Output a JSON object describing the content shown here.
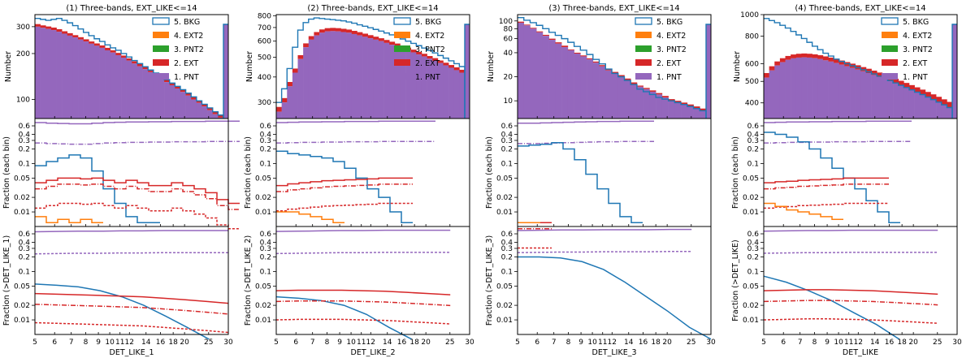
{
  "chart_data": {
    "type": "histogram-grid",
    "colors": {
      "bkg": "#1f77b4",
      "ext2": "#ff7f0e",
      "pnt2": "#2ca02c",
      "ext": "#d62728",
      "pnt": "#9467bd"
    },
    "legend": [
      "5. BKG",
      "4. EXT2",
      "3. PNT2",
      "2. EXT",
      "1. PNT"
    ],
    "row_ylabels": [
      "Number",
      "Fraction (each bin)"
    ],
    "frac_ticks": [
      0.01,
      0.02,
      0.05,
      0.1,
      0.2,
      0.3,
      0.4,
      0.6
    ],
    "frac_ticklabels": [
      "0.01",
      "0.02",
      "0.05",
      "0.1",
      "0.2",
      "0.3",
      "0.4",
      "0.6"
    ],
    "x_ticks": [
      5,
      6,
      7,
      8,
      9,
      10,
      11,
      12,
      14,
      16,
      18,
      20,
      25,
      30
    ],
    "x_ticklabels": [
      "5",
      "6",
      "7",
      "8",
      "9",
      "10",
      "11",
      "12",
      "14",
      "16",
      "18",
      "20",
      "25",
      "30"
    ],
    "panels": [
      {
        "title": "(1) Three-bands, EXT_LIKE<=14",
        "xlabel": "DET_LIKE_1",
        "cum_ylabel": "Fraction (>DET_LIKE_1)",
        "top_ylim": [
          75,
          360
        ],
        "top_ticks": [
          100,
          200,
          300
        ],
        "pnt_counts": [
          300,
          295,
          290,
          285,
          278,
          270,
          262,
          255,
          247,
          240,
          232,
          225,
          218,
          210,
          203,
          195,
          188,
          180,
          172,
          165,
          158,
          151,
          144,
          137,
          130,
          124,
          118,
          112,
          106,
          100,
          95,
          90,
          85,
          80,
          76
        ],
        "total_counts": [
          312,
          306,
          301,
          296,
          289,
          280,
          272,
          264,
          256,
          248,
          240,
          233,
          226,
          218,
          210,
          202,
          194,
          186,
          178,
          171,
          164,
          156,
          149,
          142,
          135,
          128,
          122,
          116,
          110,
          104,
          98,
          93,
          88,
          83,
          79
        ],
        "bkg_counts": [
          340,
          335,
          330,
          335,
          340,
          330,
          318,
          305,
          290,
          275,
          262,
          250,
          240,
          228,
          218,
          210,
          200,
          190,
          180,
          172,
          164,
          156,
          149,
          142,
          135,
          128,
          122,
          116,
          110,
          104,
          98,
          93,
          88,
          83,
          79
        ],
        "frac_pnt": [
          0.7,
          0.68,
          0.67,
          0.66,
          0.66,
          0.68,
          0.7,
          0.71,
          0.72,
          0.72,
          0.73,
          0.73,
          0.74,
          0.74,
          0.74,
          0.75,
          0.75,
          0.75
        ],
        "frac_bkg": [
          0.09,
          0.11,
          0.13,
          0.15,
          0.13,
          0.07,
          0.03,
          0.015,
          0.008,
          0.006,
          0.006
        ],
        "frac_ext": [
          0.04,
          0.045,
          0.05,
          0.05,
          0.048,
          0.05,
          0.045,
          0.04,
          0.045,
          0.04,
          0.035,
          0.035,
          0.04,
          0.035,
          0.03,
          0.025,
          0.018,
          0.015
        ],
        "frac_ext2": [
          0.008,
          0.006,
          0.007,
          0.006,
          0.007,
          0.006
        ],
        "cum_bkg": [
          0.055,
          0.052,
          0.048,
          0.04,
          0.03,
          0.02,
          0.012,
          0.007,
          0.004
        ],
        "cum_ext": [
          0.035,
          0.034,
          0.033,
          0.032,
          0.031,
          0.03,
          0.028,
          0.026,
          0.024,
          0.022
        ],
        "cum_pnt": [
          0.66,
          0.67,
          0.68,
          0.68,
          0.69,
          0.69,
          0.7,
          0.7,
          0.7,
          0.7
        ]
      },
      {
        "title": "(2) Three-bands, EXT_LIKE<=14",
        "xlabel": "DET_LIKE_2",
        "cum_ylabel": "Fraction (>DET_LIKE_2)",
        "top_ylim": [
          250,
          810
        ],
        "top_ticks": [
          300,
          400,
          500,
          600,
          700,
          800
        ],
        "pnt_counts": [
          270,
          300,
          360,
          420,
          490,
          560,
          610,
          640,
          660,
          670,
          672,
          670,
          665,
          660,
          650,
          640,
          630,
          620,
          610,
          600,
          588,
          576,
          564,
          552,
          540,
          528,
          516,
          504,
          492,
          480,
          468,
          456,
          444,
          432,
          420
        ],
        "total_counts": [
          285,
          315,
          378,
          440,
          512,
          585,
          635,
          665,
          685,
          695,
          697,
          695,
          690,
          684,
          674,
          664,
          653,
          642,
          631,
          620,
          608,
          596,
          584,
          571,
          558,
          545,
          532,
          520,
          507,
          495,
          482,
          470,
          458,
          446,
          434
        ],
        "bkg_counts": [
          300,
          350,
          440,
          560,
          680,
          740,
          770,
          780,
          775,
          770,
          765,
          760,
          755,
          745,
          735,
          722,
          710,
          698,
          685,
          672,
          658,
          644,
          630,
          615,
          600,
          585,
          570,
          555,
          540,
          525,
          510,
          495,
          480,
          465,
          450
        ],
        "frac_pnt": [
          0.7,
          0.71,
          0.72,
          0.72,
          0.73,
          0.73,
          0.74,
          0.74,
          0.74,
          0.75,
          0.75,
          0.75,
          0.75,
          0.75
        ],
        "frac_bkg": [
          0.18,
          0.16,
          0.15,
          0.14,
          0.13,
          0.11,
          0.08,
          0.05,
          0.03,
          0.02,
          0.01,
          0.006
        ],
        "frac_ext": [
          0.035,
          0.038,
          0.04,
          0.042,
          0.044,
          0.045,
          0.046,
          0.047,
          0.048,
          0.05,
          0.05,
          0.05
        ],
        "frac_ext2": [
          0.01,
          0.01,
          0.009,
          0.008,
          0.007,
          0.006
        ],
        "cum_bkg": [
          0.03,
          0.028,
          0.025,
          0.02,
          0.013,
          0.007,
          0.004
        ],
        "cum_ext": [
          0.04,
          0.041,
          0.041,
          0.041,
          0.04,
          0.039,
          0.037,
          0.035,
          0.033
        ],
        "cum_pnt": [
          0.67,
          0.68,
          0.69,
          0.7,
          0.7,
          0.71,
          0.71,
          0.71,
          0.71
        ]
      },
      {
        "title": "(3) Three-bands, EXT_LIKE<=14",
        "xlabel": "DET_LIKE_3",
        "cum_ylabel": "Fraction (>DET_LIKE_3)",
        "top_ylim": [
          6,
          120
        ],
        "top_ticks": [
          10,
          20,
          40,
          60,
          80,
          100
        ],
        "pnt_counts": [
          95,
          88,
          80,
          72,
          65,
          58,
          52,
          47,
          43,
          39,
          36,
          33,
          30,
          27,
          24,
          22,
          20,
          18,
          16,
          15,
          14,
          13,
          12,
          11,
          10,
          9.5,
          9,
          8.5,
          8,
          7.5
        ],
        "total_counts": [
          98,
          90,
          82,
          74,
          67,
          60,
          54,
          49,
          44,
          40,
          37,
          34,
          31,
          28,
          25,
          23,
          21,
          19,
          17,
          15.5,
          14.5,
          13.5,
          12.5,
          11.5,
          10.5,
          10,
          9.5,
          9,
          8.5,
          8
        ],
        "bkg_counts": [
          110,
          102,
          95,
          88,
          80,
          72,
          66,
          60,
          54,
          48,
          43,
          38,
          33,
          29,
          25,
          22,
          20,
          18,
          16,
          14,
          13,
          12,
          11,
          10.5,
          10,
          9.5,
          9,
          8.5,
          8,
          7.5
        ],
        "frac_pnt": [
          0.68,
          0.68,
          0.69,
          0.7,
          0.71,
          0.72,
          0.73,
          0.74,
          0.74,
          0.75,
          0.75,
          0.75
        ],
        "frac_bkg": [
          0.23,
          0.24,
          0.25,
          0.27,
          0.2,
          0.12,
          0.06,
          0.03,
          0.015,
          0.008,
          0.006
        ],
        "frac_ext": [
          0.006,
          0.006,
          0.006
        ],
        "frac_ext2": [
          0.006,
          0.006
        ],
        "cum_bkg": [
          0.2,
          0.2,
          0.19,
          0.16,
          0.11,
          0.06,
          0.03,
          0.015,
          0.007,
          0.004
        ],
        "cum_ext": [],
        "cum_pnt": [
          0.7,
          0.71,
          0.72,
          0.72,
          0.73,
          0.73,
          0.73,
          0.74,
          0.74
        ]
      },
      {
        "title": "(4) Three-bands, EXT_LIKE<=14",
        "xlabel": "DET_LIKE",
        "cum_ylabel": "Fraction (>DET_LIKE)",
        "top_ylim": [
          340,
          1000
        ],
        "top_ticks": [
          400,
          500,
          600,
          800,
          1000
        ],
        "pnt_counts": [
          520,
          560,
          590,
          610,
          625,
          635,
          640,
          642,
          640,
          636,
          630,
          622,
          614,
          605,
          595,
          585,
          575,
          565,
          555,
          545,
          534,
          523,
          512,
          501,
          490,
          479,
          468,
          457,
          446,
          435,
          424,
          413,
          402,
          391,
          380
        ],
        "total_counts": [
          545,
          585,
          615,
          636,
          651,
          661,
          666,
          668,
          666,
          662,
          656,
          648,
          640,
          631,
          621,
          611,
          601,
          591,
          580,
          570,
          559,
          548,
          537,
          526,
          514,
          503,
          492,
          481,
          470,
          459,
          448,
          437,
          426,
          415,
          404
        ],
        "bkg_counts": [
          960,
          940,
          920,
          895,
          870,
          840,
          810,
          780,
          750,
          720,
          695,
          670,
          650,
          630,
          615,
          600,
          588,
          576,
          564,
          552,
          540,
          528,
          516,
          504,
          492,
          480,
          469,
          458,
          447,
          436,
          425,
          414,
          403,
          392,
          381
        ],
        "frac_pnt": [
          0.7,
          0.71,
          0.72,
          0.72,
          0.73,
          0.73,
          0.74,
          0.74,
          0.74,
          0.75,
          0.75,
          0.75,
          0.75
        ],
        "frac_bkg": [
          0.44,
          0.4,
          0.35,
          0.28,
          0.2,
          0.13,
          0.08,
          0.05,
          0.03,
          0.017,
          0.01,
          0.006
        ],
        "frac_ext": [
          0.04,
          0.042,
          0.043,
          0.045,
          0.046,
          0.047,
          0.048,
          0.05,
          0.05,
          0.05,
          0.05
        ],
        "frac_ext2": [
          0.015,
          0.013,
          0.011,
          0.01,
          0.009,
          0.008,
          0.007
        ],
        "cum_bkg": [
          0.08,
          0.06,
          0.04,
          0.025,
          0.014,
          0.008,
          0.004
        ],
        "cum_ext": [
          0.04,
          0.041,
          0.042,
          0.042,
          0.041,
          0.04,
          0.038,
          0.036,
          0.034
        ],
        "cum_pnt": [
          0.68,
          0.69,
          0.7,
          0.7,
          0.71,
          0.71,
          0.71,
          0.71,
          0.71
        ]
      }
    ]
  }
}
